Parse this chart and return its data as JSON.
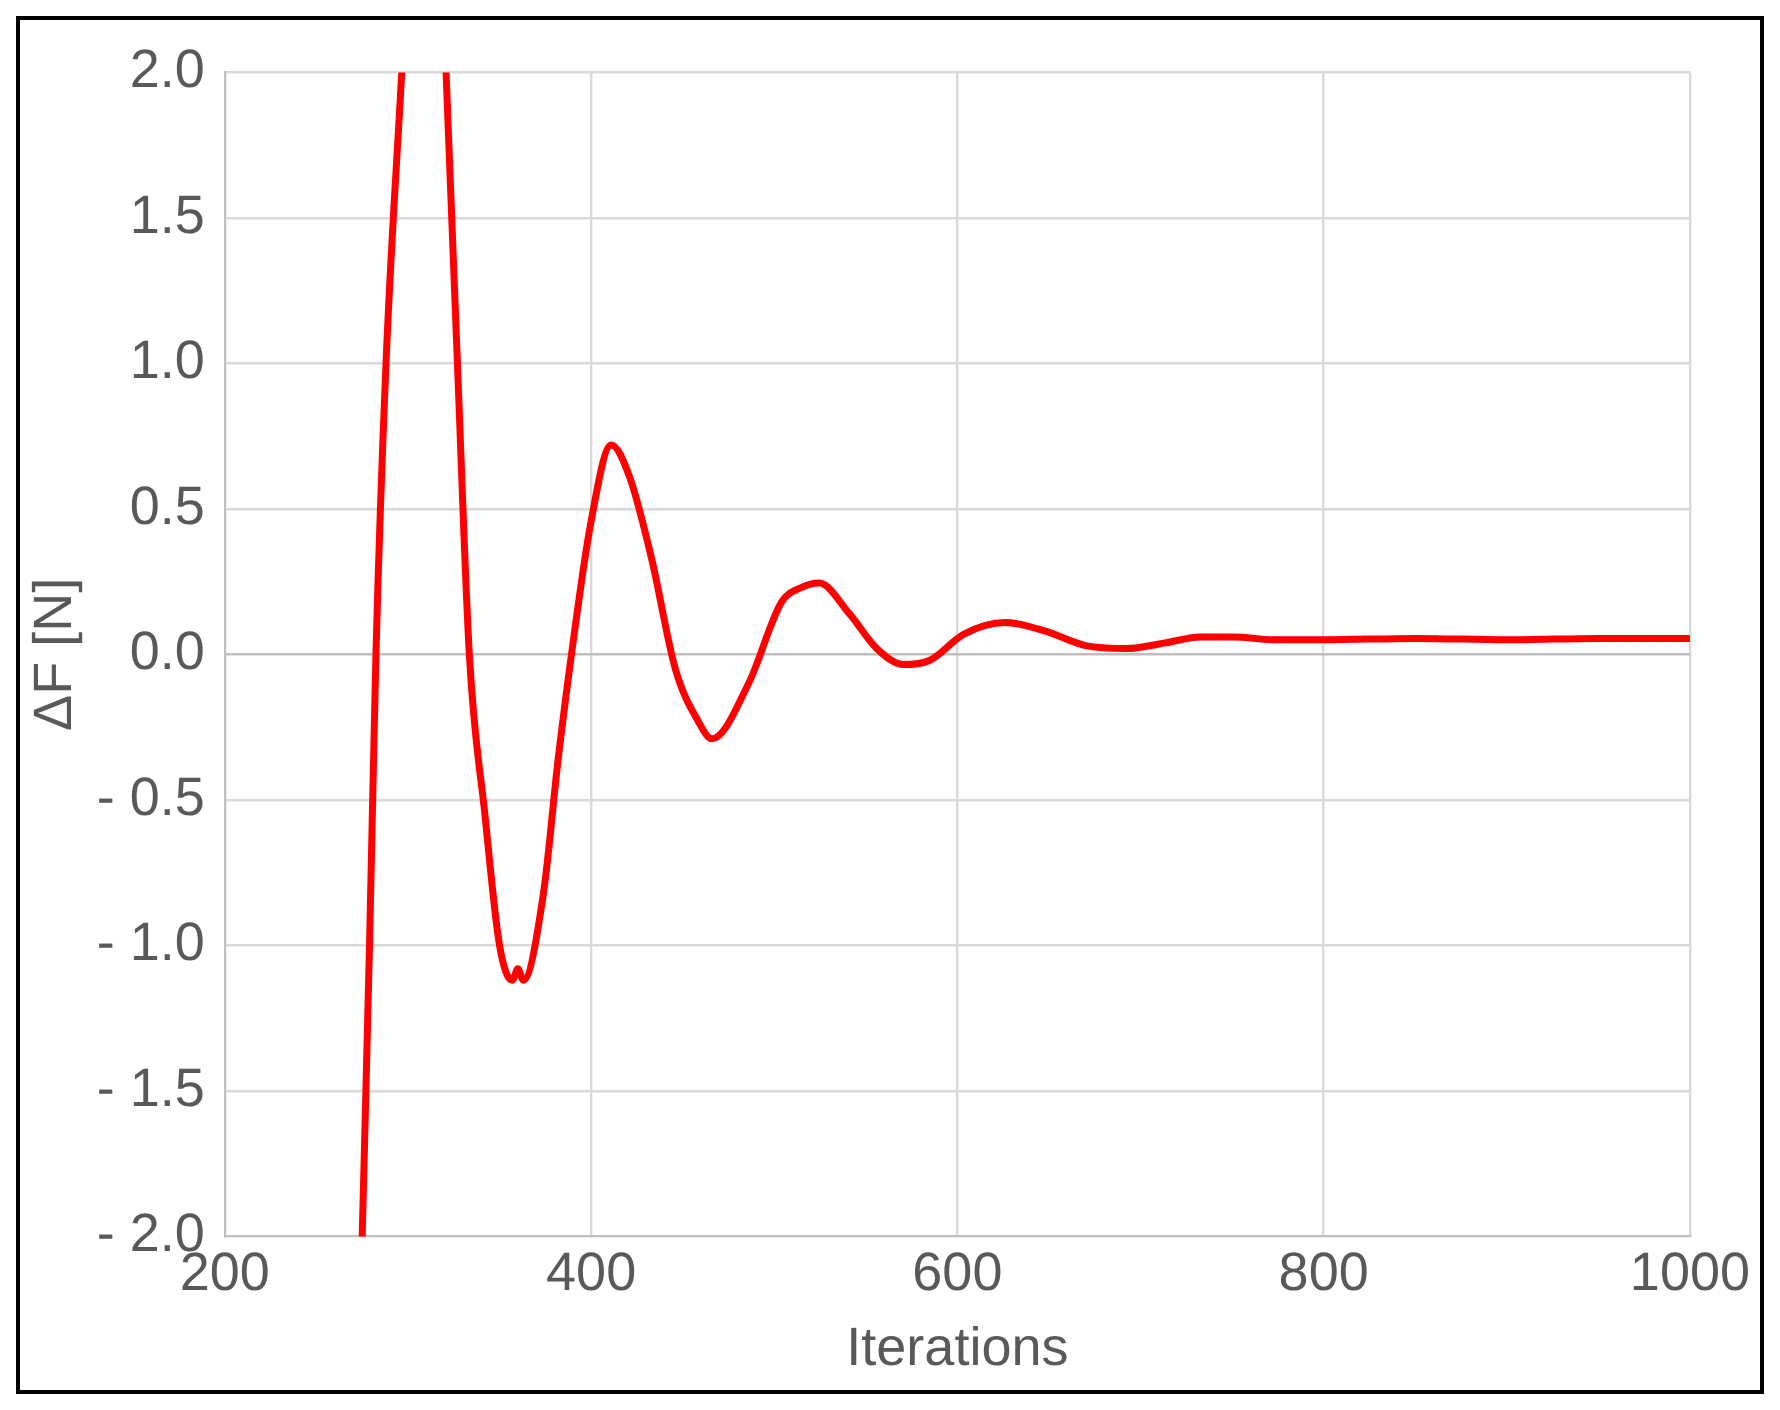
{
  "chart_data": {
    "type": "line",
    "xlabel": "Iterations",
    "ylabel": "ΔF [N]",
    "xlim": [
      200,
      1000
    ],
    "xticks": [
      200,
      400,
      600,
      800,
      1000
    ],
    "ylim": [
      -2.0,
      2.0
    ],
    "yticks": [
      {
        "value": 2.0,
        "label": "2.0"
      },
      {
        "value": 1.5,
        "label": "1.5"
      },
      {
        "value": 1.0,
        "label": "1.0"
      },
      {
        "value": 0.5,
        "label": "0.5"
      },
      {
        "value": 0.0,
        "label": "0.0"
      },
      {
        "value": -0.5,
        "label": "- 0.5"
      },
      {
        "value": -1.0,
        "label": "- 1.0"
      },
      {
        "value": -1.5,
        "label": "- 1.5"
      },
      {
        "value": -2.0,
        "label": "- 2.0"
      }
    ],
    "grid": true,
    "legend": false,
    "marker": "none",
    "line_style": "solid",
    "x": [
      275,
      279,
      282.5,
      288,
      296.6,
      308,
      320.8,
      327,
      333.5,
      342,
      350,
      357,
      360,
      363,
      374,
      382,
      391,
      399.5,
      411,
      421,
      433,
      446,
      458.5,
      466,
      486,
      504,
      515,
      524.5,
      541,
      556,
      570.5,
      585,
      603.6,
      626,
      648,
      670,
      692,
      714,
      732.6,
      751,
      773,
      800,
      850,
      900,
      950,
      1000
    ],
    "series": [
      {
        "color": "#ff0000",
        "values": [
          -2.0,
          -1.0,
          0.0,
          1.0,
          2.0,
          null,
          2.0,
          1.0,
          0.0,
          -0.55,
          -1.0,
          -1.12,
          -1.08,
          -1.12,
          -0.82,
          -0.36,
          0.08,
          0.44,
          0.72,
          0.61,
          0.33,
          -0.05,
          -0.23,
          -0.29,
          -0.1,
          0.18,
          0.23,
          0.245,
          0.14,
          0.02,
          -0.035,
          -0.02,
          0.07,
          0.11,
          0.08,
          0.03,
          0.02,
          0.04,
          0.06,
          0.06,
          0.05,
          0.05,
          0.055,
          0.05,
          0.055,
          0.055
        ]
      }
    ]
  }
}
